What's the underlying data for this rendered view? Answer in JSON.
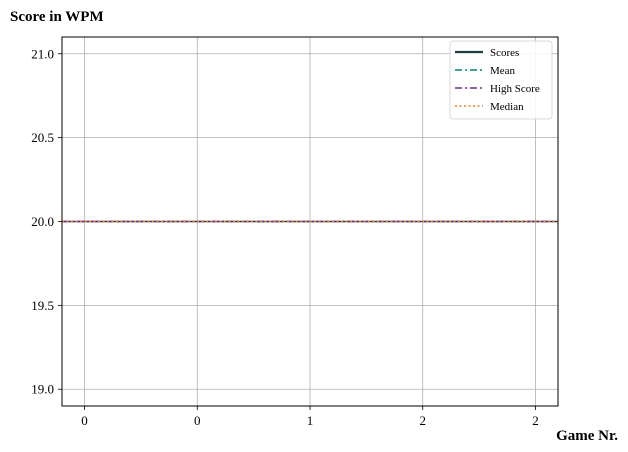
{
  "chart_data": {
    "type": "line",
    "ylabel": "Score in WPM",
    "xlabel": "Game Nr.",
    "ylim": [
      18.9,
      21.1
    ],
    "yticks": [
      "19.0",
      "19.5",
      "20.0",
      "20.5",
      "21.0"
    ],
    "xlim": [
      -0.2,
      4.2
    ],
    "xticks": [
      "0",
      "0",
      "1",
      "2",
      "2"
    ],
    "grid": true,
    "legend_position": "top-right",
    "series": [
      {
        "name": "Scores",
        "style": "solid",
        "color": "#1f3f3f",
        "x": [
          -0.2,
          4.2
        ],
        "y": [
          20.0,
          20.0
        ]
      },
      {
        "name": "Mean",
        "style": "dashdot",
        "color": "#008080",
        "x": [
          -0.2,
          4.2
        ],
        "y": [
          20.0,
          20.0
        ]
      },
      {
        "name": "High Score",
        "style": "dashdot",
        "color": "#6a2c91",
        "x": [
          -0.2,
          4.2
        ],
        "y": [
          20.0,
          20.0
        ]
      },
      {
        "name": "Median",
        "style": "dotted",
        "color": "#f07f28",
        "x": [
          -0.2,
          4.2
        ],
        "y": [
          20.0,
          20.0
        ]
      }
    ]
  }
}
